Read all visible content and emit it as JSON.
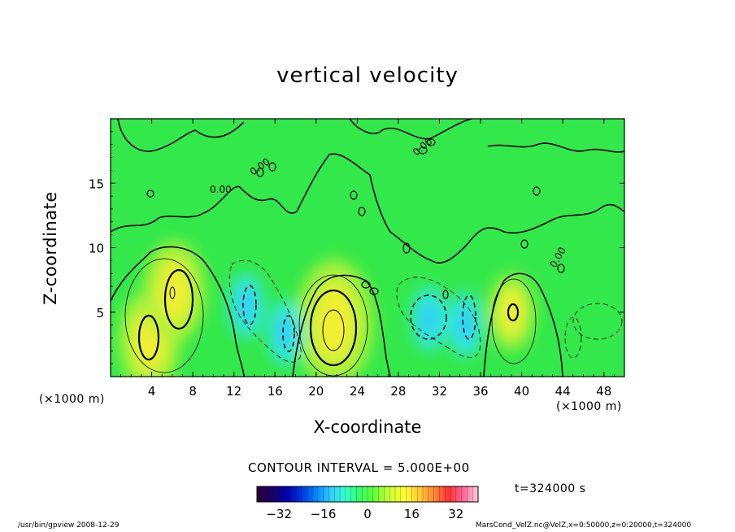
{
  "chart_data": {
    "type": "heatmap",
    "title": "vertical velocity",
    "xlabel": "X-coordinate",
    "ylabel": "Z-coordinate",
    "x_unit": "(×1000 m)",
    "y_unit": "(×1000 m)",
    "xlim": [
      0,
      50
    ],
    "ylim": [
      0,
      20
    ],
    "x_ticks": [
      4,
      8,
      12,
      16,
      20,
      24,
      28,
      32,
      36,
      40,
      44,
      48
    ],
    "y_ticks": [
      5,
      10,
      15
    ],
    "contour_interval_text": "CONTOUR INTERVAL = 5.000E+00",
    "zero_contour_label": "0.00",
    "colorbar": {
      "range": [
        -40,
        40
      ],
      "ticks": [
        -32,
        -16,
        0,
        16,
        32
      ],
      "colors": [
        "#2a0033",
        "#1a0066",
        "#0000aa",
        "#0033dd",
        "#0088ff",
        "#33ccff",
        "#33ffcc",
        "#33ff66",
        "#66ff33",
        "#ccff33",
        "#ffff33",
        "#ffcc33",
        "#ff8833",
        "#ff3333",
        "#ff6699",
        "#ffccdd"
      ]
    },
    "features": [
      {
        "kind": "updraft",
        "x": 3.8,
        "z": 2.8,
        "max": 20
      },
      {
        "kind": "updraft",
        "x": 6.2,
        "z": 6.6,
        "max": 20
      },
      {
        "kind": "updraft",
        "x": 21.8,
        "z": 4.2,
        "max": 25
      },
      {
        "kind": "updraft",
        "x": 39.0,
        "z": 5.0,
        "max": 15
      },
      {
        "kind": "downdraft",
        "x": 13.2,
        "z": 5.5,
        "min": -10
      },
      {
        "kind": "downdraft",
        "x": 17.0,
        "z": 3.4,
        "min": -10
      },
      {
        "kind": "downdraft",
        "x": 31.0,
        "z": 4.5,
        "min": -10
      },
      {
        "kind": "downdraft",
        "x": 34.5,
        "z": 4.0,
        "min": -10
      }
    ],
    "time_label": "t=324000 s"
  },
  "footer": {
    "left": "/usr/bin/gpview   2008-12-29",
    "right": "MarsCond_VelZ.nc@VelZ,x=0:50000,z=0:20000,t=324000"
  }
}
